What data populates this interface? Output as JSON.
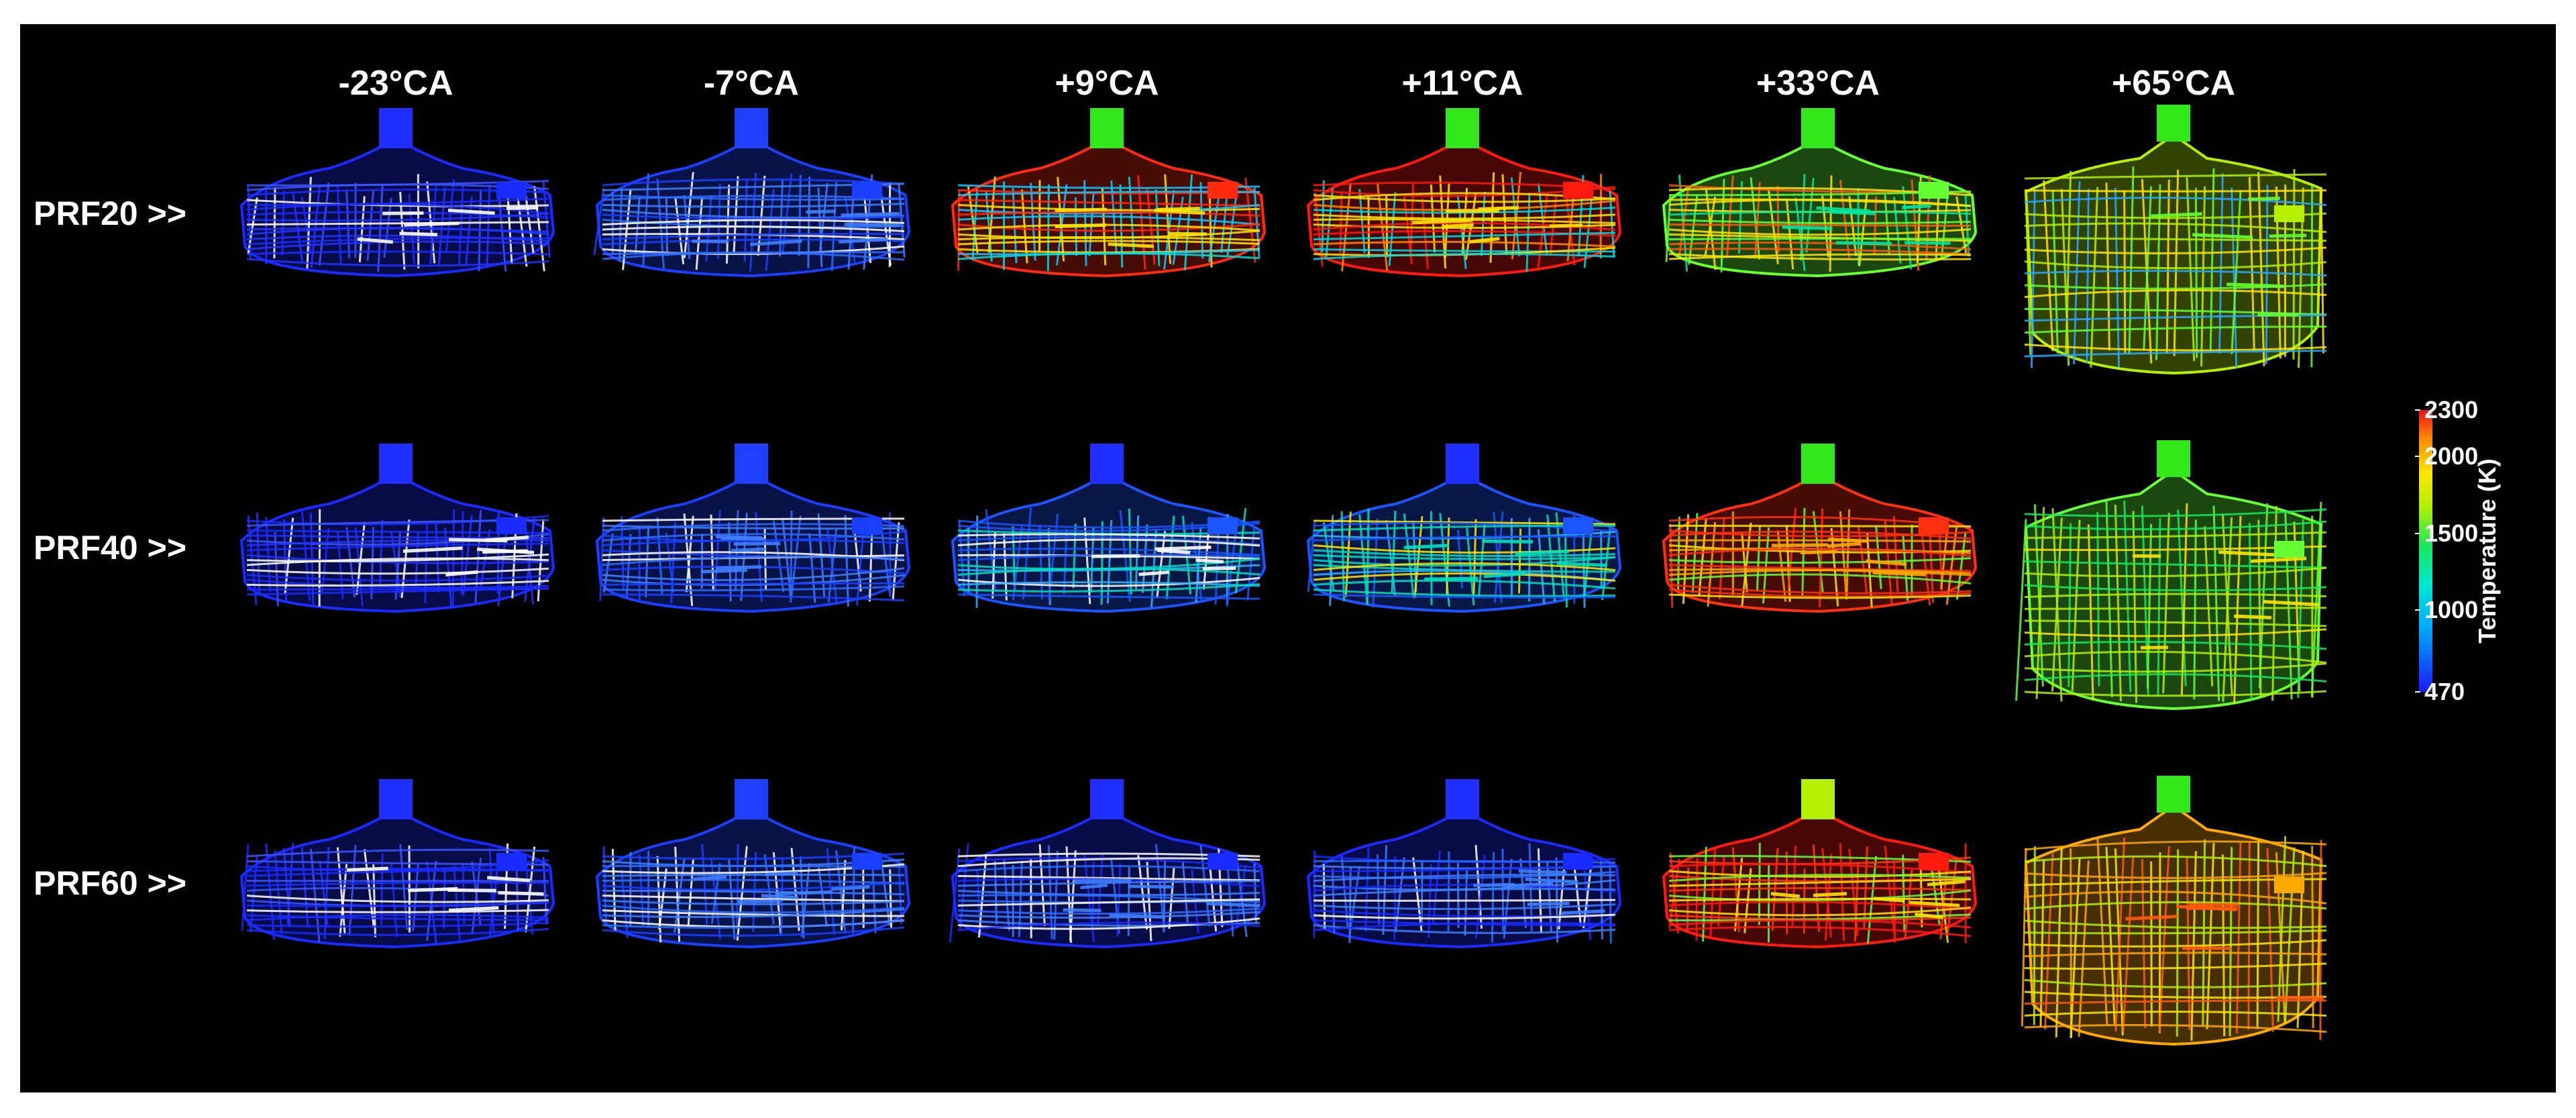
{
  "columns": [
    "-23°CA",
    "-7°CA",
    "+9°CA",
    "+11°CA",
    "+33°CA",
    "+65°CA"
  ],
  "rows": [
    {
      "label": "PRF20 >>",
      "cells": [
        {
          "palette": [
            "#1a2bff",
            "#2233ff",
            "#3a55ff",
            "#ffffff"
          ],
          "top": "#1f2fff",
          "shape": "flat"
        },
        {
          "palette": [
            "#1a3fff",
            "#2d6cff",
            "#ffffff",
            "#3f7fff"
          ],
          "top": "#2040ff",
          "shape": "flat"
        },
        {
          "palette": [
            "#ff2a10",
            "#00e0e0",
            "#17c4ff",
            "#ffe600"
          ],
          "top": "#33e81a",
          "shape": "flat"
        },
        {
          "palette": [
            "#ff1a10",
            "#00d8e0",
            "#ff8a00",
            "#ffe600"
          ],
          "top": "#33e81a",
          "shape": "flat"
        },
        {
          "palette": [
            "#66ff33",
            "#ffe600",
            "#ff5a10",
            "#00e6a0"
          ],
          "top": "#33e81a",
          "shape": "flat"
        },
        {
          "palette": [
            "#b4f000",
            "#2aa8ff",
            "#ffe600",
            "#66ff33"
          ],
          "top": "#33e81a",
          "shape": "tall"
        }
      ]
    },
    {
      "label": "PRF40 >>",
      "cells": [
        {
          "palette": [
            "#1a2bff",
            "#2233ff",
            "#3a55ff",
            "#ffffff"
          ],
          "top": "#1f2fff",
          "shape": "flat"
        },
        {
          "palette": [
            "#1a3fff",
            "#2d6cff",
            "#ffffff",
            "#3f7fff"
          ],
          "top": "#2040ff",
          "shape": "flat"
        },
        {
          "palette": [
            "#1a55ff",
            "#33b0ff",
            "#00e0c0",
            "#ffffff"
          ],
          "top": "#1f2fff",
          "shape": "flat"
        },
        {
          "palette": [
            "#1a55ff",
            "#33b0ff",
            "#ffe600",
            "#00e0c0"
          ],
          "top": "#1f2fff",
          "shape": "flat"
        },
        {
          "palette": [
            "#ff3010",
            "#ffe600",
            "#66ff33",
            "#ffa800"
          ],
          "top": "#33e81a",
          "shape": "flat"
        },
        {
          "palette": [
            "#66ff33",
            "#b4f000",
            "#19e85a",
            "#ffe600"
          ],
          "top": "#33e81a",
          "shape": "tall"
        }
      ]
    },
    {
      "label": "PRF60 >>",
      "cells": [
        {
          "palette": [
            "#1a2bff",
            "#2233ff",
            "#3a55ff",
            "#ffffff"
          ],
          "top": "#1f2fff",
          "shape": "flat"
        },
        {
          "palette": [
            "#1a3fff",
            "#2d6cff",
            "#ffffff",
            "#3f7fff"
          ],
          "top": "#2040ff",
          "shape": "flat"
        },
        {
          "palette": [
            "#1a2bff",
            "#2d6cff",
            "#ffffff",
            "#3f7fff"
          ],
          "top": "#1f2fff",
          "shape": "flat"
        },
        {
          "palette": [
            "#1a2bff",
            "#2d6cff",
            "#ffffff",
            "#3f7fff"
          ],
          "top": "#1f2fff",
          "shape": "flat"
        },
        {
          "palette": [
            "#ff1a10",
            "#ff3a10",
            "#66ff33",
            "#ffe600"
          ],
          "top": "#b4f000",
          "shape": "flat"
        },
        {
          "palette": [
            "#ffa800",
            "#ffe600",
            "#b4f000",
            "#ff5a10"
          ],
          "top": "#33e81a",
          "shape": "tall"
        }
      ]
    }
  ],
  "colorbar": {
    "title": "Temperature (K)",
    "min": 470,
    "max": 2300,
    "ticks": [
      {
        "value": 2300,
        "label": "2300"
      },
      {
        "value": 2000,
        "label": "2000"
      },
      {
        "value": 1500,
        "label": "1500"
      },
      {
        "value": 1000,
        "label": "1000"
      },
      {
        "value": 470,
        "label": "470"
      }
    ]
  }
}
